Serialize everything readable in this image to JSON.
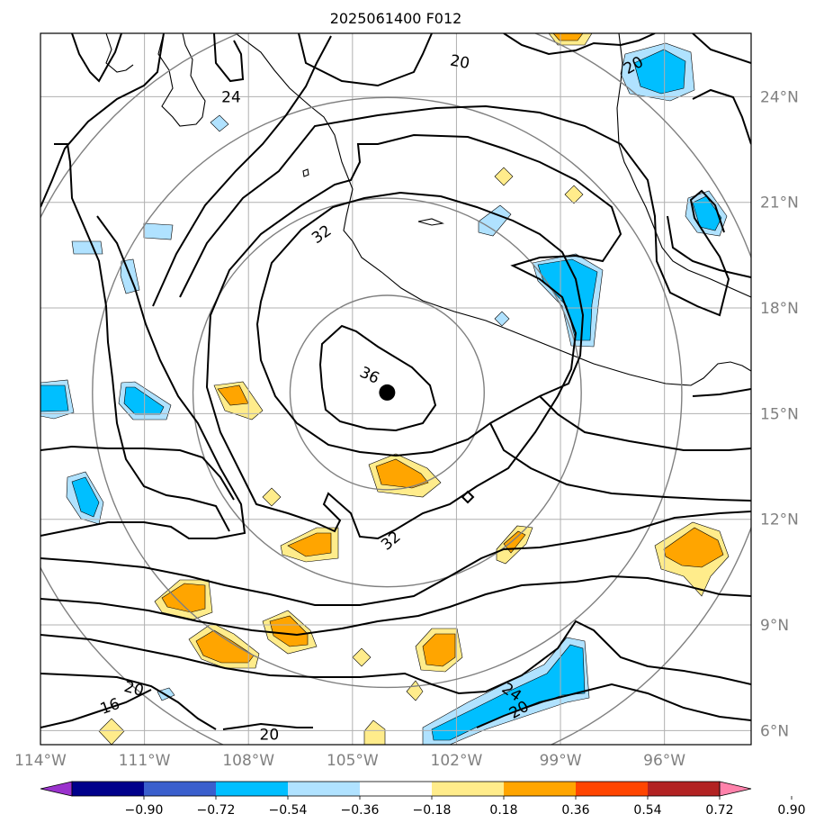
{
  "title": "2025061400 F012",
  "map": {
    "lon_range": [
      -114,
      -93.5
    ],
    "lat_range": [
      5.6,
      25.8
    ],
    "lon_ticks": [
      {
        "value": -114,
        "label": "114°W"
      },
      {
        "value": -111,
        "label": "111°W"
      },
      {
        "value": -108,
        "label": "108°W"
      },
      {
        "value": -105,
        "label": "105°W"
      },
      {
        "value": -102,
        "label": "102°W"
      },
      {
        "value": -99,
        "label": "99°W"
      },
      {
        "value": -96,
        "label": "96°W"
      }
    ],
    "lat_ticks": [
      {
        "value": 6,
        "label": "6°N"
      },
      {
        "value": 9,
        "label": "9°N"
      },
      {
        "value": 12,
        "label": "12°N"
      },
      {
        "value": 15,
        "label": "15°N"
      },
      {
        "value": 18,
        "label": "18°N"
      },
      {
        "value": 21,
        "label": "21°N"
      },
      {
        "value": 24,
        "label": "24°N"
      }
    ],
    "storm_center": {
      "lon": -104.0,
      "lat": 15.6
    },
    "range_rings_deg": [
      2.8,
      5.6,
      8.5,
      11.2
    ],
    "contour_labels": [
      {
        "text": "36",
        "lon": -104.5,
        "lat": 16.1,
        "rotate": 25
      },
      {
        "text": "32",
        "lon": -105.9,
        "lat": 20.1,
        "rotate": -35
      },
      {
        "text": "32",
        "lon": -103.9,
        "lat": 11.4,
        "rotate": -40
      },
      {
        "text": "24",
        "lon": -108.5,
        "lat": 24.0,
        "rotate": 0
      },
      {
        "text": "24",
        "lon": -100.4,
        "lat": 7.1,
        "rotate": 35
      },
      {
        "text": "20",
        "lon": -101.9,
        "lat": 25.0,
        "rotate": 10
      },
      {
        "text": "20",
        "lon": -96.9,
        "lat": 24.9,
        "rotate": -30
      },
      {
        "text": "20",
        "lon": -111.3,
        "lat": 7.2,
        "rotate": 15
      },
      {
        "text": "20",
        "lon": -107.4,
        "lat": 5.9,
        "rotate": 0
      },
      {
        "text": "20",
        "lon": -100.2,
        "lat": 6.6,
        "rotate": -30
      },
      {
        "text": "16",
        "lon": -112.0,
        "lat": 6.7,
        "rotate": -20
      }
    ]
  },
  "colorbar": {
    "levels": [
      "−0.90",
      "−0.72",
      "−0.54",
      "−0.36",
      "−0.18",
      "0.18",
      "0.36",
      "0.54",
      "0.72",
      "0.90"
    ],
    "colors": [
      "#9a32cd",
      "#00008b",
      "#3a5fcd",
      "#00bfff",
      "#b0e2ff",
      "#ffffff",
      "#ffec8b",
      "#ffa500",
      "#ff4500",
      "#b22222",
      "#ff82ab"
    ]
  }
}
